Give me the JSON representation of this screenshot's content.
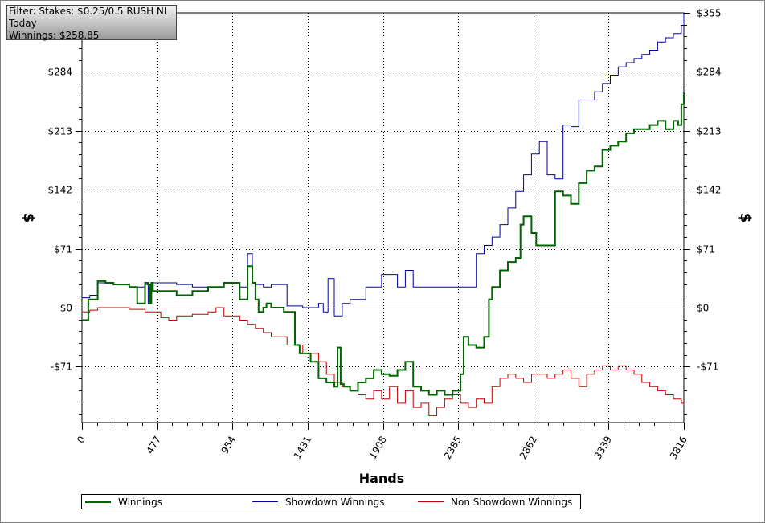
{
  "filter": {
    "line1": "Filter: Stakes: $0.25/0.5 RUSH NL",
    "line2": "Today",
    "line3": "Winnings: $258.85"
  },
  "chart_data": {
    "type": "line",
    "title": "",
    "xlabel": "Hands",
    "ylabel": "$",
    "xlim": [
      0,
      3816
    ],
    "ylim": [
      -137,
      355
    ],
    "x_ticks": [
      0,
      477,
      954,
      1431,
      1908,
      2385,
      2862,
      3339,
      3816
    ],
    "y_ticks": [
      -71,
      0,
      71,
      142,
      213,
      284,
      355
    ],
    "y_tick_labels": [
      "-$71",
      "$0",
      "$71",
      "$142",
      "$213",
      "$284",
      "$355"
    ],
    "grid": true,
    "legend_position": "bottom",
    "series": [
      {
        "name": "Winnings",
        "color": "#006400",
        "x": [
          0,
          40,
          100,
          150,
          200,
          300,
          350,
          400,
          420,
          430,
          440,
          450,
          600,
          700,
          800,
          900,
          1000,
          1050,
          1080,
          1100,
          1120,
          1150,
          1170,
          1200,
          1280,
          1350,
          1380,
          1400,
          1450,
          1500,
          1550,
          1600,
          1620,
          1640,
          1660,
          1700,
          1750,
          1800,
          1850,
          1900,
          1950,
          2000,
          2050,
          2100,
          2150,
          2200,
          2250,
          2300,
          2350,
          2400,
          2420,
          2450,
          2500,
          2550,
          2580,
          2600,
          2650,
          2700,
          2750,
          2780,
          2800,
          2850,
          2880,
          2900,
          2950,
          3000,
          3050,
          3100,
          3150,
          3200,
          3250,
          3300,
          3350,
          3400,
          3450,
          3500,
          3550,
          3600,
          3650,
          3700,
          3750,
          3780,
          3800,
          3816
        ],
        "y": [
          -15,
          10,
          32,
          30,
          28,
          25,
          5,
          30,
          28,
          5,
          30,
          20,
          15,
          20,
          25,
          30,
          10,
          50,
          30,
          10,
          -5,
          0,
          5,
          0,
          -5,
          -45,
          -55,
          -55,
          -65,
          -85,
          -90,
          -95,
          -48,
          -92,
          -95,
          -100,
          -90,
          -85,
          -75,
          -80,
          -82,
          -75,
          -65,
          -95,
          -100,
          -105,
          -100,
          -105,
          -100,
          -80,
          -35,
          -45,
          -48,
          -35,
          10,
          25,
          45,
          55,
          60,
          100,
          110,
          90,
          75,
          75,
          75,
          140,
          135,
          125,
          150,
          165,
          170,
          190,
          195,
          200,
          210,
          215,
          215,
          220,
          225,
          215,
          225,
          220,
          245,
          258.85
        ]
      },
      {
        "name": "Showdown Winnings",
        "color": "#0000a0",
        "x": [
          0,
          50,
          100,
          200,
          300,
          400,
          420,
          440,
          500,
          600,
          700,
          800,
          900,
          1000,
          1050,
          1080,
          1100,
          1150,
          1200,
          1300,
          1400,
          1500,
          1530,
          1560,
          1600,
          1650,
          1700,
          1800,
          1900,
          2000,
          2050,
          2100,
          2200,
          2300,
          2350,
          2400,
          2500,
          2550,
          2600,
          2650,
          2700,
          2750,
          2800,
          2850,
          2900,
          2950,
          3000,
          3050,
          3100,
          3150,
          3200,
          3250,
          3300,
          3350,
          3400,
          3450,
          3500,
          3550,
          3600,
          3650,
          3700,
          3750,
          3800,
          3816
        ],
        "y": [
          12,
          15,
          30,
          28,
          25,
          28,
          5,
          30,
          30,
          28,
          25,
          25,
          30,
          25,
          65,
          30,
          28,
          25,
          28,
          2,
          0,
          5,
          -5,
          35,
          -10,
          5,
          10,
          25,
          40,
          25,
          45,
          25,
          25,
          25,
          25,
          25,
          65,
          75,
          85,
          100,
          120,
          140,
          160,
          185,
          200,
          160,
          155,
          220,
          218,
          250,
          250,
          260,
          270,
          280,
          290,
          295,
          300,
          305,
          310,
          320,
          325,
          330,
          340,
          355
        ]
      },
      {
        "name": "Non Showdown Winnings",
        "color": "#c00000",
        "x": [
          0,
          50,
          100,
          200,
          300,
          400,
          500,
          550,
          600,
          700,
          800,
          850,
          900,
          1000,
          1050,
          1100,
          1150,
          1200,
          1300,
          1400,
          1500,
          1550,
          1600,
          1650,
          1700,
          1750,
          1800,
          1850,
          1900,
          1950,
          2000,
          2050,
          2100,
          2150,
          2200,
          2250,
          2300,
          2350,
          2400,
          2450,
          2500,
          2550,
          2600,
          2650,
          2700,
          2750,
          2800,
          2850,
          2900,
          2950,
          3000,
          3050,
          3100,
          3150,
          3200,
          3250,
          3300,
          3350,
          3400,
          3450,
          3500,
          3550,
          3600,
          3650,
          3700,
          3750,
          3800,
          3816
        ],
        "y": [
          -5,
          -3,
          0,
          0,
          -2,
          -5,
          -12,
          -15,
          -10,
          -8,
          -5,
          0,
          -10,
          -15,
          -20,
          -25,
          -30,
          -35,
          -45,
          -55,
          -65,
          -80,
          -90,
          -95,
          -100,
          -105,
          -110,
          -100,
          -110,
          -95,
          -115,
          -100,
          -120,
          -115,
          -130,
          -120,
          -110,
          -105,
          -115,
          -120,
          -110,
          -115,
          -95,
          -85,
          -80,
          -85,
          -90,
          -80,
          -80,
          -85,
          -80,
          -75,
          -85,
          -95,
          -80,
          -75,
          -70,
          -75,
          -70,
          -75,
          -80,
          -90,
          -95,
          -100,
          -105,
          -110,
          -115,
          -115
        ]
      }
    ]
  }
}
